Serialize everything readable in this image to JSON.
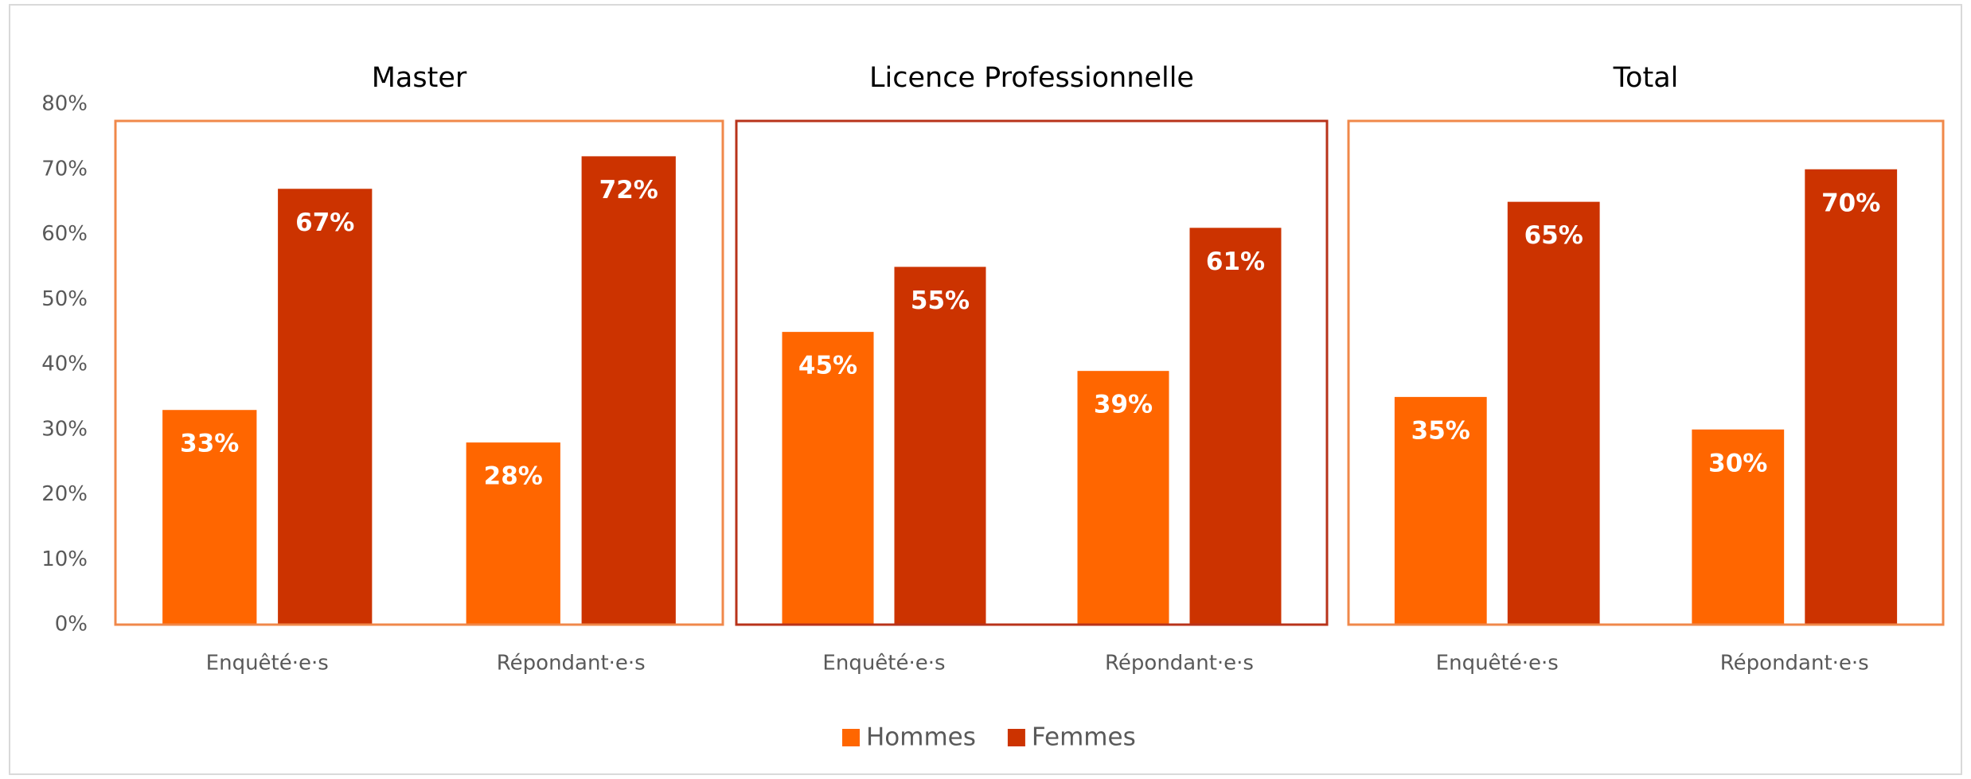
{
  "chart_data": {
    "type": "bar",
    "ylim": [
      0,
      80
    ],
    "yticks": [
      {
        "value": 0,
        "label": "0%"
      },
      {
        "value": 10,
        "label": "10%"
      },
      {
        "value": 20,
        "label": "20%"
      },
      {
        "value": 30,
        "label": "30%"
      },
      {
        "value": 40,
        "label": "40%"
      },
      {
        "value": 50,
        "label": "50%"
      },
      {
        "value": 60,
        "label": "60%"
      },
      {
        "value": 70,
        "label": "70%"
      },
      {
        "value": 80,
        "label": "80%"
      }
    ],
    "legend": "bottom",
    "series": [
      {
        "name": "Hommes",
        "color": "#ff6600"
      },
      {
        "name": "Femmes",
        "color": "#cc3300"
      }
    ],
    "panels": [
      {
        "title": "Master",
        "border": "#f0884a",
        "categories": [
          "Enquêté·e·s",
          "Répondant·e·s"
        ],
        "series": [
          {
            "values": [
              33,
              28
            ],
            "value_labels": [
              "33%",
              "28%"
            ]
          },
          {
            "values": [
              67,
              72
            ],
            "value_labels": [
              "67%",
              "72%"
            ]
          }
        ]
      },
      {
        "title": "Licence Professionnelle",
        "border": "#b8331a",
        "categories": [
          "Enquêté·e·s",
          "Répondant·e·s"
        ],
        "series": [
          {
            "values": [
              45,
              39
            ],
            "value_labels": [
              "45%",
              "39%"
            ]
          },
          {
            "values": [
              55,
              61
            ],
            "value_labels": [
              "55%",
              "61%"
            ]
          }
        ]
      },
      {
        "title": "Total",
        "border": "#f0884a",
        "categories": [
          "Enquêté·e·s",
          "Répondant·e·s"
        ],
        "series": [
          {
            "values": [
              35,
              30
            ],
            "value_labels": [
              "35%",
              "30%"
            ]
          },
          {
            "values": [
              65,
              70
            ],
            "value_labels": [
              "65%",
              "70%"
            ]
          }
        ]
      }
    ]
  }
}
